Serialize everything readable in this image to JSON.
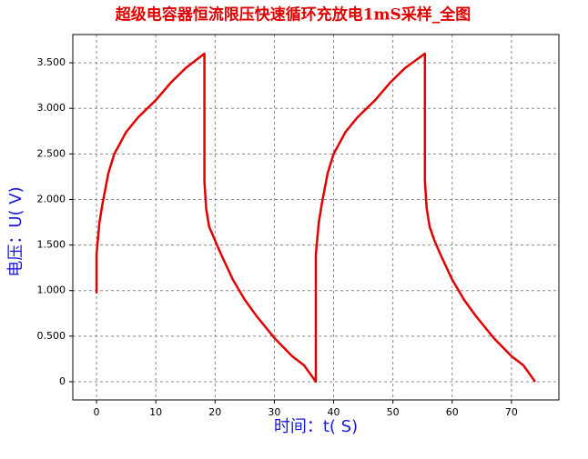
{
  "chart_data": {
    "type": "line",
    "title": "超级电容器恒流限压快速循环充放电1mS采样_全图",
    "x_label": "时间：t( S)",
    "y_label": "电压：U( V)",
    "x": [
      0,
      0,
      0.5,
      1,
      2,
      3,
      5,
      7,
      10,
      12.5,
      15,
      18.2,
      18.2,
      18.5,
      19,
      20,
      21,
      23,
      25,
      27,
      30,
      33,
      35,
      37,
      37,
      37.5,
      38,
      39,
      40,
      42,
      44,
      47,
      49.5,
      52,
      55.4,
      55.4,
      55.7,
      56.2,
      57,
      58,
      60,
      62,
      64,
      67,
      70,
      72,
      74
    ],
    "series": [
      {
        "color": "#e00000",
        "values": [
          0.97,
          1.4,
          1.75,
          1.95,
          2.29,
          2.5,
          2.74,
          2.9,
          3.09,
          3.28,
          3.44,
          3.6,
          2.2,
          1.9,
          1.7,
          1.55,
          1.4,
          1.12,
          0.9,
          0.72,
          0.48,
          0.28,
          0.18,
          0,
          1.4,
          1.75,
          1.95,
          2.29,
          2.5,
          2.74,
          2.9,
          3.09,
          3.28,
          3.44,
          3.6,
          2.2,
          1.9,
          1.7,
          1.55,
          1.4,
          1.12,
          0.9,
          0.72,
          0.48,
          0.28,
          0.18,
          0
        ]
      }
    ],
    "xlim": [
      -4,
      78
    ],
    "ylim": [
      -0.2,
      3.81
    ],
    "xticks": [
      0,
      10,
      20,
      30,
      40,
      50,
      60,
      70
    ],
    "yticks": [
      0,
      {
        "value": 0.5,
        "label": "0.500"
      },
      {
        "value": 1,
        "label": "1.000"
      },
      {
        "value": 1.5,
        "label": "1.500"
      },
      {
        "value": 2,
        "label": "2.000"
      },
      {
        "value": 2.5,
        "label": "2.500"
      },
      {
        "value": 3,
        "label": "3.000"
      },
      {
        "value": 3.5,
        "label": "3.500"
      }
    ],
    "grid": true
  }
}
